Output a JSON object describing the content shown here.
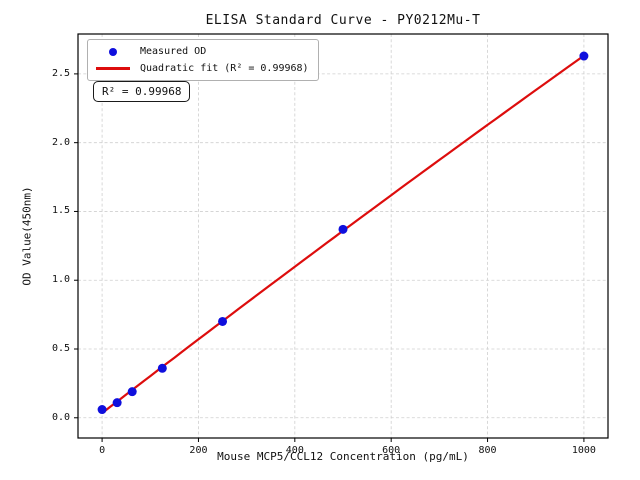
{
  "chart_data": {
    "type": "scatter",
    "title": "ELISA Standard Curve - PY0212Mu-T",
    "xlabel": "Mouse MCP5/CCL12 Concentration (pg/mL)",
    "ylabel": "OD Value(450nm)",
    "xlim": [
      -50,
      1050
    ],
    "ylim": [
      -0.147,
      2.79
    ],
    "x_ticks": [
      0,
      200,
      400,
      600,
      800,
      1000
    ],
    "x_tick_labels": [
      "0",
      "200",
      "400",
      "600",
      "800",
      "1000"
    ],
    "y_ticks": [
      0.0,
      0.5,
      1.0,
      1.5,
      2.0,
      2.5
    ],
    "y_tick_labels": [
      "0.0",
      "0.5",
      "1.0",
      "1.5",
      "2.0",
      "2.5"
    ],
    "grid": true,
    "legend_position": "upper-left",
    "series": [
      {
        "name": "Measured OD",
        "type": "scatter",
        "color": "#0f0fdd",
        "x": [
          0,
          31.25,
          62.5,
          125,
          250,
          500,
          1000
        ],
        "y": [
          0.06,
          0.11,
          0.19,
          0.36,
          0.7,
          1.37,
          2.63
        ]
      },
      {
        "name": "Quadratic fit (R² = 0.99968)",
        "type": "quadratic-fit-line",
        "color": "#dd0d0d",
        "fit_degree": 2,
        "x_range": [
          0,
          1000
        ]
      }
    ],
    "annotation": "R² = 0.99968",
    "r_squared": 0.99968,
    "colors": {
      "grid": "#cfcfcf",
      "spine": "#000000",
      "background": "#ffffff",
      "point": "#0f0fdd",
      "fit_line": "#dd0d0d"
    }
  }
}
